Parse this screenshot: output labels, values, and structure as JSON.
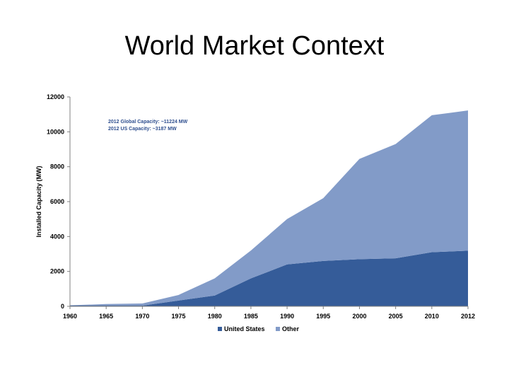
{
  "slide": {
    "title": "World Market Context"
  },
  "chart_data": {
    "type": "area",
    "stacked": true,
    "x": [
      "1960",
      "1965",
      "1970",
      "1975",
      "1980",
      "1985",
      "1990",
      "1995",
      "2000",
      "2005",
      "2010",
      "2012"
    ],
    "series": [
      {
        "name": "United States",
        "color": "#355C99",
        "values": [
          40,
          40,
          40,
          330,
          620,
          1600,
          2400,
          2600,
          2700,
          2750,
          3100,
          3187
        ]
      },
      {
        "name": "Other",
        "color": "#829BC8",
        "values": [
          20,
          90,
          120,
          320,
          980,
          1600,
          2600,
          3600,
          5750,
          6550,
          7850,
          8037
        ]
      }
    ],
    "title": "",
    "xlabel": "",
    "ylabel": "Installed Capacity (MW)",
    "ylim": [
      0,
      12000
    ],
    "yticks": [
      0,
      2000,
      4000,
      6000,
      8000,
      10000,
      12000
    ],
    "grid": false,
    "legend_position": "bottom",
    "annotations": [
      {
        "text": "2012 Global Capacity: ~11224 MW",
        "color": "#2F4F8F"
      },
      {
        "text": "2012 US Capacity: ~3187 MW",
        "color": "#2F4F8F"
      }
    ]
  }
}
